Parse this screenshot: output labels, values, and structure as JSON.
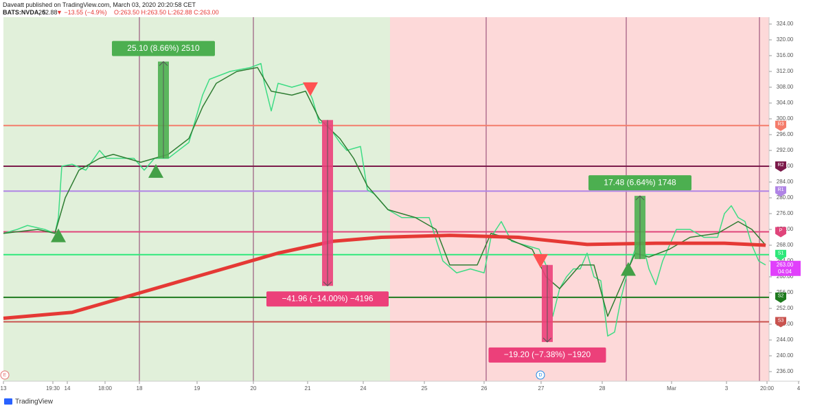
{
  "header": {
    "publisher": "Daveatt published on TradingView.com, March 03, 2020 20:20:58 CET",
    "symbol": "BATS:NVDA, 5",
    "last": "262.88",
    "change": "▼ −13.55 (−4.9%)",
    "ohlc": "O:263.50 H:263.50 L:262.88 C:263.00"
  },
  "chart_data": {
    "type": "line",
    "xlim": [
      0,
      116
    ],
    "xticks": [
      {
        "value": 0,
        "label": "13"
      },
      {
        "value": 7.2,
        "label": "19:30"
      },
      {
        "value": 9.3,
        "label": "14"
      },
      {
        "value": 14.8,
        "label": "18:00"
      },
      {
        "value": 19.8,
        "label": "18"
      },
      {
        "value": 28.2,
        "label": "19"
      },
      {
        "value": 36.4,
        "label": "20"
      },
      {
        "value": 44.3,
        "label": "21"
      },
      {
        "value": 52.4,
        "label": "24"
      },
      {
        "value": 61.3,
        "label": "25"
      },
      {
        "value": 70,
        "label": "26"
      },
      {
        "value": 78.3,
        "label": "27"
      },
      {
        "value": 87.2,
        "label": "28"
      },
      {
        "value": 97.3,
        "label": "Mar"
      },
      {
        "value": 105.3,
        "label": "3"
      },
      {
        "value": 111.2,
        "label": "20:00"
      },
      {
        "value": 115.8,
        "label": "4"
      }
    ],
    "ylim": [
      236,
      324
    ],
    "yticks": [
      {
        "value": 236,
        "label": "236.00"
      },
      {
        "value": 240,
        "label": "240.00"
      },
      {
        "value": 244,
        "label": "244.00"
      },
      {
        "value": 248,
        "label": "248.00"
      },
      {
        "value": 252,
        "label": "252.00"
      },
      {
        "value": 256,
        "label": "256.00"
      },
      {
        "value": 260,
        "label": "260.00"
      },
      {
        "value": 264,
        "label": "264.00"
      },
      {
        "value": 268,
        "label": "268.00"
      },
      {
        "value": 272,
        "label": "272.00"
      },
      {
        "value": 276,
        "label": "276.00"
      },
      {
        "value": 280,
        "label": "280.00"
      },
      {
        "value": 284,
        "label": "284.00"
      },
      {
        "value": 288,
        "label": "288.00"
      },
      {
        "value": 292,
        "label": "292.00"
      },
      {
        "value": 296,
        "label": "296.00"
      },
      {
        "value": 300,
        "label": "300.00"
      },
      {
        "value": 304,
        "label": "304.00"
      },
      {
        "value": 308,
        "label": "308.00"
      },
      {
        "value": 312,
        "label": "312.00"
      },
      {
        "value": 316,
        "label": "316.00"
      },
      {
        "value": 320,
        "label": "320.00"
      },
      {
        "value": 324,
        "label": "324.00"
      }
    ],
    "series": [
      {
        "color": "#3ddc84",
        "width": 1.5,
        "x": [
          0,
          2,
          3.5,
          6,
          7.5,
          8,
          8.5,
          10,
          12,
          14,
          15,
          17,
          19,
          20.5,
          22,
          24,
          27,
          29,
          30,
          33,
          36,
          37.5,
          38,
          39,
          40,
          42,
          44,
          45,
          46,
          47,
          49,
          50,
          52,
          53,
          54,
          56,
          58,
          60,
          62,
          64,
          66,
          68,
          70,
          71,
          72.5,
          74,
          76,
          78,
          79,
          80,
          81,
          82,
          83,
          84,
          85,
          86,
          87,
          88,
          89,
          90,
          91,
          92,
          93,
          94,
          95,
          96,
          97,
          98,
          100,
          102,
          104,
          105,
          106,
          107,
          108,
          109,
          110,
          111
        ],
        "values": [
          271,
          272,
          273,
          272,
          271,
          275,
          288,
          288.5,
          287,
          292,
          290,
          290,
          290,
          287,
          290,
          290,
          294,
          306,
          310,
          312,
          313,
          314,
          309,
          302,
          309,
          308,
          309,
          305,
          299,
          299,
          294,
          292,
          293,
          282,
          281,
          277,
          275,
          275,
          275,
          264,
          261,
          262,
          261,
          270,
          274,
          269,
          268,
          267,
          263,
          250,
          257,
          260,
          262,
          262,
          266,
          260,
          259,
          245,
          246,
          255,
          262,
          267,
          269,
          262,
          258,
          264,
          268,
          272,
          272,
          270,
          270,
          276,
          278,
          275,
          274,
          268,
          264,
          263
        ]
      },
      {
        "color": "#2e7d32",
        "width": 1.5,
        "x": [
          0,
          5,
          7.5,
          9,
          11,
          14,
          16,
          20,
          24,
          27,
          29,
          31,
          34,
          37,
          39,
          42,
          44,
          46,
          49,
          51,
          53,
          56,
          60,
          63,
          65,
          69,
          71,
          73,
          77,
          79,
          81,
          84,
          86,
          88,
          90,
          92,
          94,
          97,
          100,
          104,
          107,
          109,
          111
        ],
        "values": [
          271,
          272,
          271,
          280,
          287,
          290,
          291,
          289,
          291,
          295,
          303,
          309,
          312,
          313,
          307,
          306,
          307,
          300,
          295,
          290,
          283,
          277,
          275,
          272,
          263,
          263,
          271,
          270,
          267,
          260,
          257,
          263,
          263,
          250,
          258,
          266,
          265,
          267,
          270,
          271,
          274,
          272,
          268
        ]
      },
      {
        "color": "#e53935",
        "width": 5,
        "x": [
          0,
          10,
          20,
          30,
          40,
          48,
          55,
          65,
          75,
          85,
          95,
          105,
          111
        ],
        "values": [
          249.5,
          251,
          256,
          261,
          266,
          269,
          270,
          270.5,
          270,
          268.2,
          268.5,
          268.5,
          268
        ]
      }
    ],
    "levels": [
      {
        "name": "R3",
        "value": 298.3,
        "color": "#f47c6b"
      },
      {
        "name": "R2",
        "value": 288,
        "color": "#7b1a4a"
      },
      {
        "name": "R1",
        "value": 281.7,
        "color": "#b084e6"
      },
      {
        "name": "P",
        "value": 271.4,
        "color": "#e0457b"
      },
      {
        "name": "S1",
        "value": 265.6,
        "color": "#2ee87a"
      },
      {
        "name": "S2",
        "value": 254.8,
        "color": "#1e7a1e"
      },
      {
        "name": "S3",
        "value": 248.6,
        "color": "#c9534f"
      }
    ],
    "annotations": [
      {
        "label": "25.10 (8.66%) 2510",
        "x": 23.3,
        "from": 290,
        "to": 314.5,
        "color": "#4caf50"
      },
      {
        "label": "−41.96 (−14.00%) −4196",
        "x": 47.2,
        "from": 299.7,
        "to": 257.7,
        "color": "#ec407a"
      },
      {
        "label": "−19.20 (−7.38%) −1920",
        "x": 79.2,
        "from": 263,
        "to": 243.5,
        "color": "#ec407a"
      },
      {
        "label": "17.48 (6.64%) 1748",
        "x": 92.7,
        "from": 264.5,
        "to": 280.5,
        "color": "#4caf50"
      }
    ],
    "signals": [
      {
        "x": 8,
        "y": 270.5,
        "dir": "up"
      },
      {
        "x": 22.2,
        "y": 286.8,
        "dir": "up"
      },
      {
        "x": 91,
        "y": 262,
        "dir": "up"
      },
      {
        "x": 44.7,
        "y": 307.5,
        "dir": "down"
      },
      {
        "x": 78.2,
        "y": 264,
        "dir": "down"
      }
    ],
    "last_price": {
      "value": 263,
      "label": "263.00",
      "timer": "04:04"
    },
    "events": [
      "E",
      "D"
    ],
    "brand": "TradingView"
  }
}
